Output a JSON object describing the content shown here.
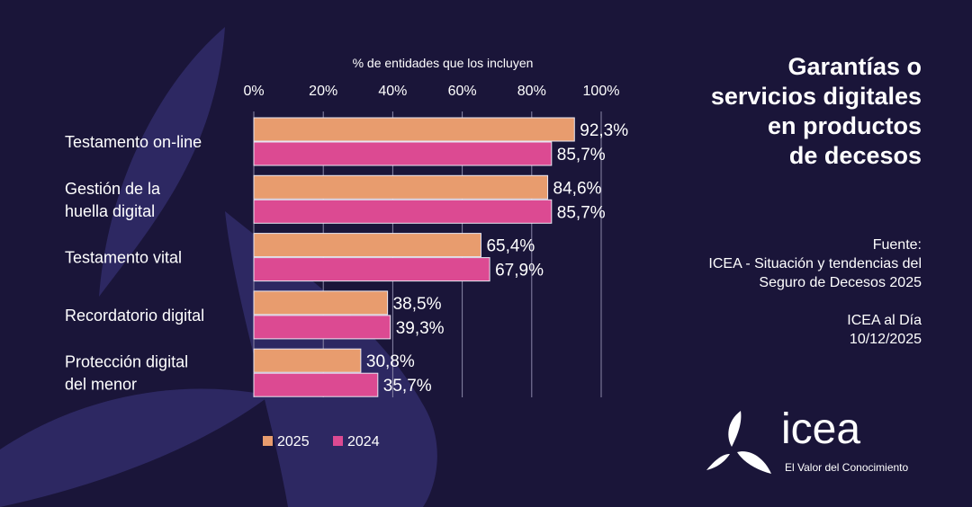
{
  "title": "Garantías o servicios digitales en productos de decesos",
  "source": {
    "label": "Fuente:",
    "text": "ICEA - Situación y tendencias del Seguro de Decesos 2025",
    "publication": "ICEA al Día",
    "date": "10/12/2025"
  },
  "logo": {
    "name": "icea",
    "tagline": "El Valor del Conocimiento"
  },
  "chart_data": {
    "type": "bar",
    "orientation": "horizontal",
    "xlabel": "% de entidades que los incluyen",
    "xlim": [
      0,
      100
    ],
    "xticks": [
      "0%",
      "20%",
      "40%",
      "60%",
      "80%",
      "100%"
    ],
    "grid": true,
    "legend": "bottom",
    "categories": [
      "Testamento on-line",
      "Gestión de la huella digital",
      "Testamento vital",
      "Recordatorio digital",
      "Protección digital del menor"
    ],
    "category_lines": [
      [
        "Testamento on-line"
      ],
      [
        "Gestión de la",
        "huella digital"
      ],
      [
        "Testamento vital"
      ],
      [
        "Recordatorio digital"
      ],
      [
        "Protección digital",
        "del menor"
      ]
    ],
    "series": [
      {
        "name": "2025",
        "color": "#e89c6e",
        "values": [
          92.3,
          84.6,
          65.4,
          38.5,
          30.8
        ],
        "labels": [
          "92,3%",
          "84,6%",
          "65,4%",
          "38,5%",
          "30,8%"
        ]
      },
      {
        "name": "2024",
        "color": "#dc4a92",
        "values": [
          85.7,
          85.7,
          67.9,
          39.3,
          35.7
        ],
        "labels": [
          "85,7%",
          "85,7%",
          "67,9%",
          "39,3%",
          "35,7%"
        ]
      }
    ]
  }
}
